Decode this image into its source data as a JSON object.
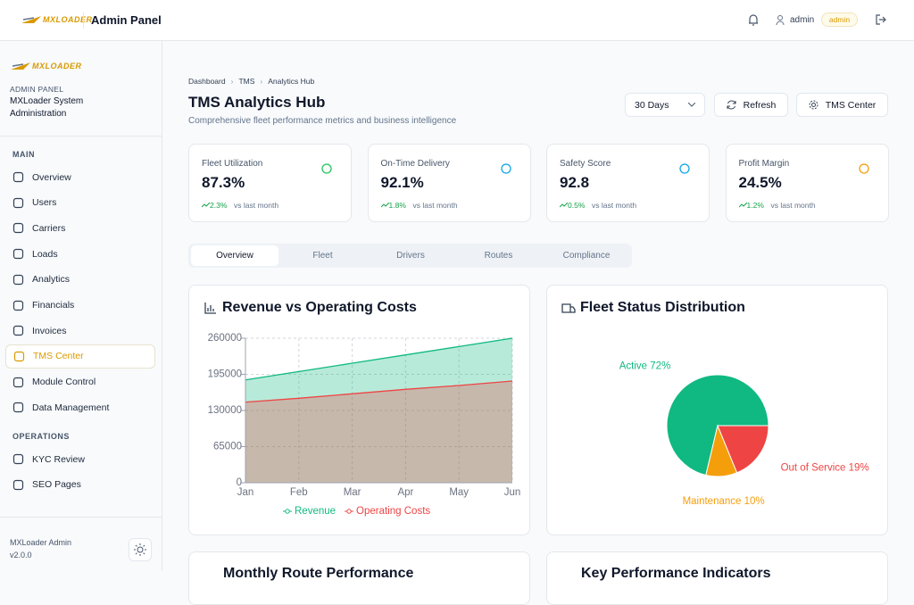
{
  "header": {
    "logo": "MXLOADER",
    "title": "Admin Panel",
    "user": "admin",
    "role": "admin"
  },
  "sidebar": {
    "logo": "MXLOADER",
    "label": "ADMIN PANEL",
    "system": "MXLoader System Administration",
    "sections": [
      {
        "title": "MAIN",
        "items": [
          "Overview",
          "Users",
          "Carriers",
          "Loads",
          "Analytics",
          "Financials",
          "Invoices",
          "TMS Center",
          "Module Control",
          "Data Management"
        ]
      },
      {
        "title": "OPERATIONS",
        "items": [
          "KYC Review",
          "SEO Pages"
        ]
      }
    ],
    "footer": {
      "name": "MXLoader Admin",
      "version": "v2.0.0"
    }
  },
  "breadcrumb": [
    "Dashboard",
    "TMS",
    "Analytics Hub"
  ],
  "page": {
    "title": "TMS Analytics Hub",
    "subtitle": "Comprehensive fleet performance metrics and business intelligence",
    "range": "30 Days",
    "refresh": "Refresh",
    "center": "TMS Center"
  },
  "kpis": [
    {
      "label": "Fleet Utilization",
      "value": "87.3%",
      "change": "2.3%",
      "note": "vs last month"
    },
    {
      "label": "On-Time Delivery",
      "value": "92.1%",
      "change": "1.8%",
      "note": "vs last month"
    },
    {
      "label": "Safety Score",
      "value": "92.8",
      "change": "0.5%",
      "note": "vs last month"
    },
    {
      "label": "Profit Margin",
      "value": "24.5%",
      "change": "1.2%",
      "note": "vs last month"
    }
  ],
  "tabs": [
    "Overview",
    "Fleet",
    "Drivers",
    "Routes",
    "Compliance"
  ],
  "chart_data": [
    {
      "type": "area",
      "title": "Revenue vs Operating Costs",
      "categories": [
        "Jan",
        "Feb",
        "Mar",
        "Apr",
        "May",
        "Jun"
      ],
      "series": [
        {
          "name": "Revenue",
          "color": "#10b981",
          "values": [
            185000,
            200000,
            215000,
            230000,
            245000,
            260000
          ]
        },
        {
          "name": "Operating Costs",
          "color": "#ef4444",
          "values": [
            145000,
            152000,
            160000,
            168000,
            175000,
            183000
          ]
        }
      ],
      "ylim": [
        0,
        260000
      ],
      "yticks": [
        0,
        65000,
        130000,
        195000,
        260000
      ],
      "grid": true
    },
    {
      "type": "pie",
      "title": "Fleet Status Distribution",
      "categories": [
        "Active",
        "Maintenance",
        "Out of Service"
      ],
      "values": [
        72,
        10,
        19
      ],
      "value_labels": [
        "Active 72%",
        "Maintenance 10%",
        "Out of Service 19%"
      ],
      "colors": [
        "#10b981",
        "#f59e0b",
        "#ef4444"
      ]
    }
  ],
  "lower_cards": [
    "Monthly Route Performance",
    "Key Performance Indicators"
  ]
}
